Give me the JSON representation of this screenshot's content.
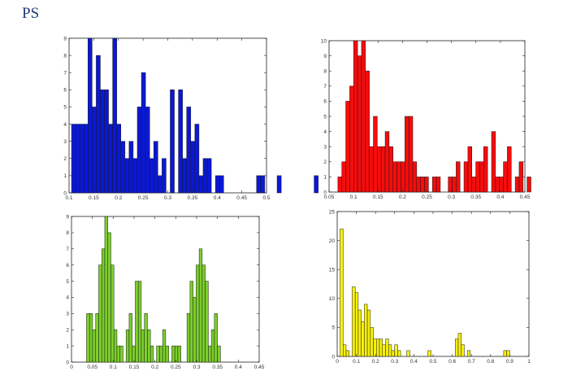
{
  "page": {
    "title": "PS"
  },
  "chart_data": [
    {
      "type": "bar",
      "title": "",
      "xlabel": "",
      "ylabel": "",
      "color": "#0a18d8",
      "xlim": [
        0.1,
        0.5
      ],
      "ylim": [
        0,
        9
      ],
      "xticks": [
        "0.1",
        "0.15",
        "0.2",
        "0.25",
        "0.3",
        "0.35",
        "0.4",
        "0.45",
        "0.5"
      ],
      "yticks": [
        "0",
        "1",
        "2",
        "3",
        "4",
        "5",
        "6",
        "7",
        "8",
        "9"
      ],
      "bin_start": 0.105,
      "bin_width": 0.00833,
      "values": [
        4,
        4,
        4,
        4,
        9,
        5,
        8,
        6,
        6,
        4,
        9,
        4,
        3,
        2,
        3,
        2,
        5,
        7,
        5,
        2,
        3,
        1,
        2,
        0,
        6,
        0,
        6,
        2,
        5,
        3,
        4,
        1,
        2,
        2,
        0,
        1,
        1,
        0,
        0,
        0,
        0,
        0,
        0,
        0,
        0,
        1,
        1,
        0,
        0,
        0,
        1,
        0,
        0,
        0,
        0,
        0,
        0,
        0,
        0,
        1
      ]
    },
    {
      "type": "bar",
      "title": "",
      "xlabel": "",
      "ylabel": "",
      "color": "#f50c0c",
      "xlim": [
        0.05,
        0.45
      ],
      "ylim": [
        0,
        10
      ],
      "xticks": [
        "0.05",
        "0.1",
        "0.15",
        "0.2",
        "0.25",
        "0.3",
        "0.35",
        "0.4",
        "0.45"
      ],
      "yticks": [
        "0",
        "1",
        "2",
        "3",
        "4",
        "5",
        "6",
        "7",
        "8",
        "9",
        "10"
      ],
      "bin_start": 0.068,
      "bin_width": 0.00805,
      "values": [
        1,
        2,
        6,
        7,
        10,
        9,
        10,
        8,
        3,
        5,
        3,
        3,
        4,
        3,
        2,
        2,
        2,
        5,
        5,
        2,
        1,
        1,
        1,
        0,
        1,
        1,
        0,
        0,
        1,
        1,
        2,
        0,
        2,
        3,
        1,
        2,
        2,
        3,
        0,
        4,
        1,
        1,
        2,
        3,
        0,
        1,
        2,
        0,
        1,
        0
      ]
    },
    {
      "type": "bar",
      "title": "",
      "xlabel": "",
      "ylabel": "",
      "color": "#7ccf2c",
      "xlim": [
        0,
        0.45
      ],
      "ylim": [
        0,
        9
      ],
      "xticks": [
        "0",
        "0.05",
        "0.1",
        "0.15",
        "0.2",
        "0.25",
        "0.3",
        "0.35",
        "0.4",
        "0.45"
      ],
      "yticks": [
        "0",
        "1",
        "2",
        "3",
        "4",
        "5",
        "6",
        "7",
        "8",
        "9"
      ],
      "bin_start": 0.036,
      "bin_width": 0.0073,
      "values": [
        3,
        3,
        2,
        3,
        6,
        7,
        9,
        8,
        6,
        2,
        1,
        1,
        0,
        2,
        3,
        1,
        5,
        5,
        2,
        3,
        2,
        1,
        0,
        1,
        1,
        2,
        1,
        0,
        1,
        1,
        1,
        0,
        0,
        3,
        5,
        4,
        6,
        7,
        6,
        5,
        1,
        2,
        3,
        1
      ]
    },
    {
      "type": "bar",
      "title": "",
      "xlabel": "",
      "ylabel": "",
      "color": "#f7f00c",
      "xlim": [
        0,
        1
      ],
      "ylim": [
        0,
        25
      ],
      "xticks": [
        "0",
        "0.1",
        "0.2",
        "0.3",
        "0.4",
        "0.5",
        "0.6",
        "0.7",
        "0.8",
        "0.9",
        "1"
      ],
      "yticks": [
        "0",
        "5",
        "10",
        "15",
        "20",
        "25"
      ],
      "bin_start": 0.015,
      "bin_width": 0.0158,
      "values": [
        22,
        2,
        1,
        0,
        12,
        11,
        8,
        6,
        9,
        8,
        5,
        3,
        3,
        3,
        2,
        3,
        2,
        1,
        2,
        1,
        0,
        0,
        1,
        0,
        0,
        0,
        0,
        0,
        0,
        1,
        0,
        0,
        0,
        0,
        0,
        0,
        0,
        0,
        3,
        4,
        2,
        0,
        1,
        0,
        0,
        0,
        0,
        0,
        0,
        0,
        0,
        0,
        0,
        0,
        1,
        1
      ]
    }
  ]
}
